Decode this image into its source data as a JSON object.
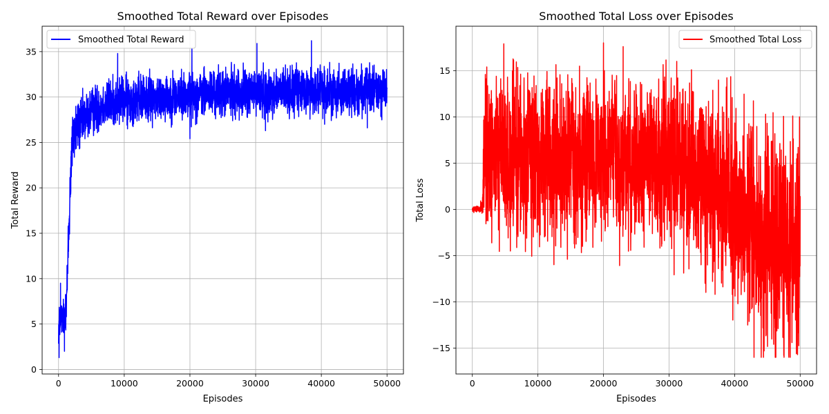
{
  "chart_data": [
    {
      "type": "line",
      "title": "Smoothed Total Reward over Episodes",
      "xlabel": "Episodes",
      "ylabel": "Total Reward",
      "xlim": [
        -2500,
        52500
      ],
      "ylim": [
        -0.5,
        37.8
      ],
      "xticks": [
        0,
        10000,
        20000,
        30000,
        40000,
        50000
      ],
      "xtick_labels": [
        "0",
        "10000",
        "20000",
        "30000",
        "40000",
        "50000"
      ],
      "yticks": [
        0,
        5,
        10,
        15,
        20,
        25,
        30,
        35
      ],
      "ytick_labels": [
        "0",
        "5",
        "10",
        "15",
        "20",
        "25",
        "30",
        "35"
      ],
      "grid": true,
      "legend_position": "upper left",
      "series": [
        {
          "name": "Smoothed Total Reward",
          "color": "#0000ff",
          "x": [
            0,
            200,
            400,
            600,
            800,
            1000,
            1200,
            1400,
            1600,
            1800,
            2000,
            2200,
            2500,
            3000,
            3500,
            4000,
            5000,
            6000,
            7000,
            8000,
            9000,
            10000,
            12000,
            14000,
            16000,
            18000,
            20000,
            22000,
            24000,
            26000,
            28000,
            30000,
            32000,
            34000,
            36000,
            38000,
            40000,
            42000,
            44000,
            46000,
            48000,
            50000
          ],
          "center": [
            4.5,
            5.5,
            5.8,
            5.5,
            5.8,
            6.5,
            8.0,
            11.0,
            16.0,
            21.0,
            24.0,
            25.5,
            26.3,
            26.8,
            27.2,
            27.7,
            28.4,
            28.9,
            29.2,
            29.4,
            29.6,
            29.7,
            29.8,
            29.9,
            30.0,
            30.1,
            30.2,
            30.3,
            30.4,
            30.5,
            30.5,
            30.5,
            30.6,
            30.6,
            30.6,
            30.6,
            30.7,
            30.7,
            30.7,
            30.7,
            30.7,
            30.7
          ],
          "spread": [
            1.6,
            2.0,
            1.8,
            1.8,
            1.8,
            2.0,
            2.5,
            3.0,
            3.5,
            3.5,
            3.2,
            3.0,
            2.8,
            2.6,
            2.5,
            2.4,
            2.3,
            2.3,
            2.3,
            2.3,
            2.3,
            2.3,
            2.3,
            2.3,
            2.3,
            2.3,
            2.3,
            2.3,
            2.3,
            2.3,
            2.3,
            2.3,
            2.3,
            2.3,
            2.3,
            2.3,
            2.3,
            2.3,
            2.3,
            2.3,
            2.3,
            2.3
          ],
          "spikes": [
            [
              80,
              1.3
            ],
            [
              300,
              9.5
            ],
            [
              900,
              2.0
            ],
            [
              9000,
              34.8
            ],
            [
              10500,
              26.5
            ],
            [
              20000,
              25.4
            ],
            [
              20300,
              35.3
            ],
            [
              30200,
              35.9
            ],
            [
              31500,
              26.3
            ],
            [
              38500,
              36.2
            ],
            [
              40500,
              27.0
            ],
            [
              47000,
              26.6
            ],
            [
              49800,
              29.0
            ]
          ],
          "envelope_min": 1.3,
          "envelope_max": 36.2
        }
      ]
    },
    {
      "type": "line",
      "title": "Smoothed Total Loss over Episodes",
      "xlabel": "Episodes",
      "ylabel": "Total Loss",
      "xlim": [
        -2500,
        52500
      ],
      "ylim": [
        -17.8,
        19.8
      ],
      "xticks": [
        0,
        10000,
        20000,
        30000,
        40000,
        50000
      ],
      "xtick_labels": [
        "0",
        "10000",
        "20000",
        "30000",
        "40000",
        "50000"
      ],
      "yticks": [
        -15,
        -10,
        -5,
        0,
        5,
        10,
        15
      ],
      "ytick_labels": [
        "−15",
        "−10",
        "−5",
        "0",
        "5",
        "10",
        "15"
      ],
      "grid": true,
      "legend_position": "upper right",
      "series": [
        {
          "name": "Smoothed Total Loss",
          "color": "#ff0000",
          "x": [
            0,
            500,
            1000,
            1500,
            1800,
            2000,
            2500,
            3000,
            4000,
            6000,
            8000,
            10000,
            14000,
            18000,
            22000,
            26000,
            30000,
            32000,
            34000,
            36000,
            38000,
            40000,
            42000,
            44000,
            46000,
            48000,
            50000
          ],
          "center": [
            0.0,
            0.0,
            0.0,
            0.0,
            4.0,
            6.0,
            6.2,
            6.0,
            5.8,
            5.5,
            5.5,
            5.5,
            5.5,
            5.5,
            5.5,
            5.5,
            5.2,
            4.8,
            4.0,
            3.0,
            2.0,
            1.0,
            -1.5,
            -3.0,
            -3.5,
            -3.5,
            -3.0
          ],
          "spread": [
            0.25,
            0.3,
            0.4,
            1.0,
            6.0,
            7.5,
            7.5,
            7.5,
            7.5,
            7.5,
            7.5,
            7.5,
            7.5,
            7.5,
            7.5,
            7.5,
            7.8,
            8.0,
            8.2,
            8.5,
            8.8,
            9.0,
            10.0,
            10.5,
            10.5,
            10.5,
            10.5
          ],
          "spikes": [
            [
              2200,
              15.4
            ],
            [
              4800,
              17.9
            ],
            [
              5800,
              -4.5
            ],
            [
              14500,
              -5.4
            ],
            [
              20000,
              18.0
            ],
            [
              23000,
              17.6
            ],
            [
              35500,
              -8.0
            ],
            [
              40500,
              -10.2
            ],
            [
              42000,
              -12.5
            ],
            [
              44500,
              -15.3
            ],
            [
              46200,
              -16.0
            ],
            [
              47500,
              -15.8
            ],
            [
              49900,
              10.0
            ]
          ],
          "envelope_min": -16.0,
          "envelope_max": 18.0
        }
      ]
    }
  ]
}
